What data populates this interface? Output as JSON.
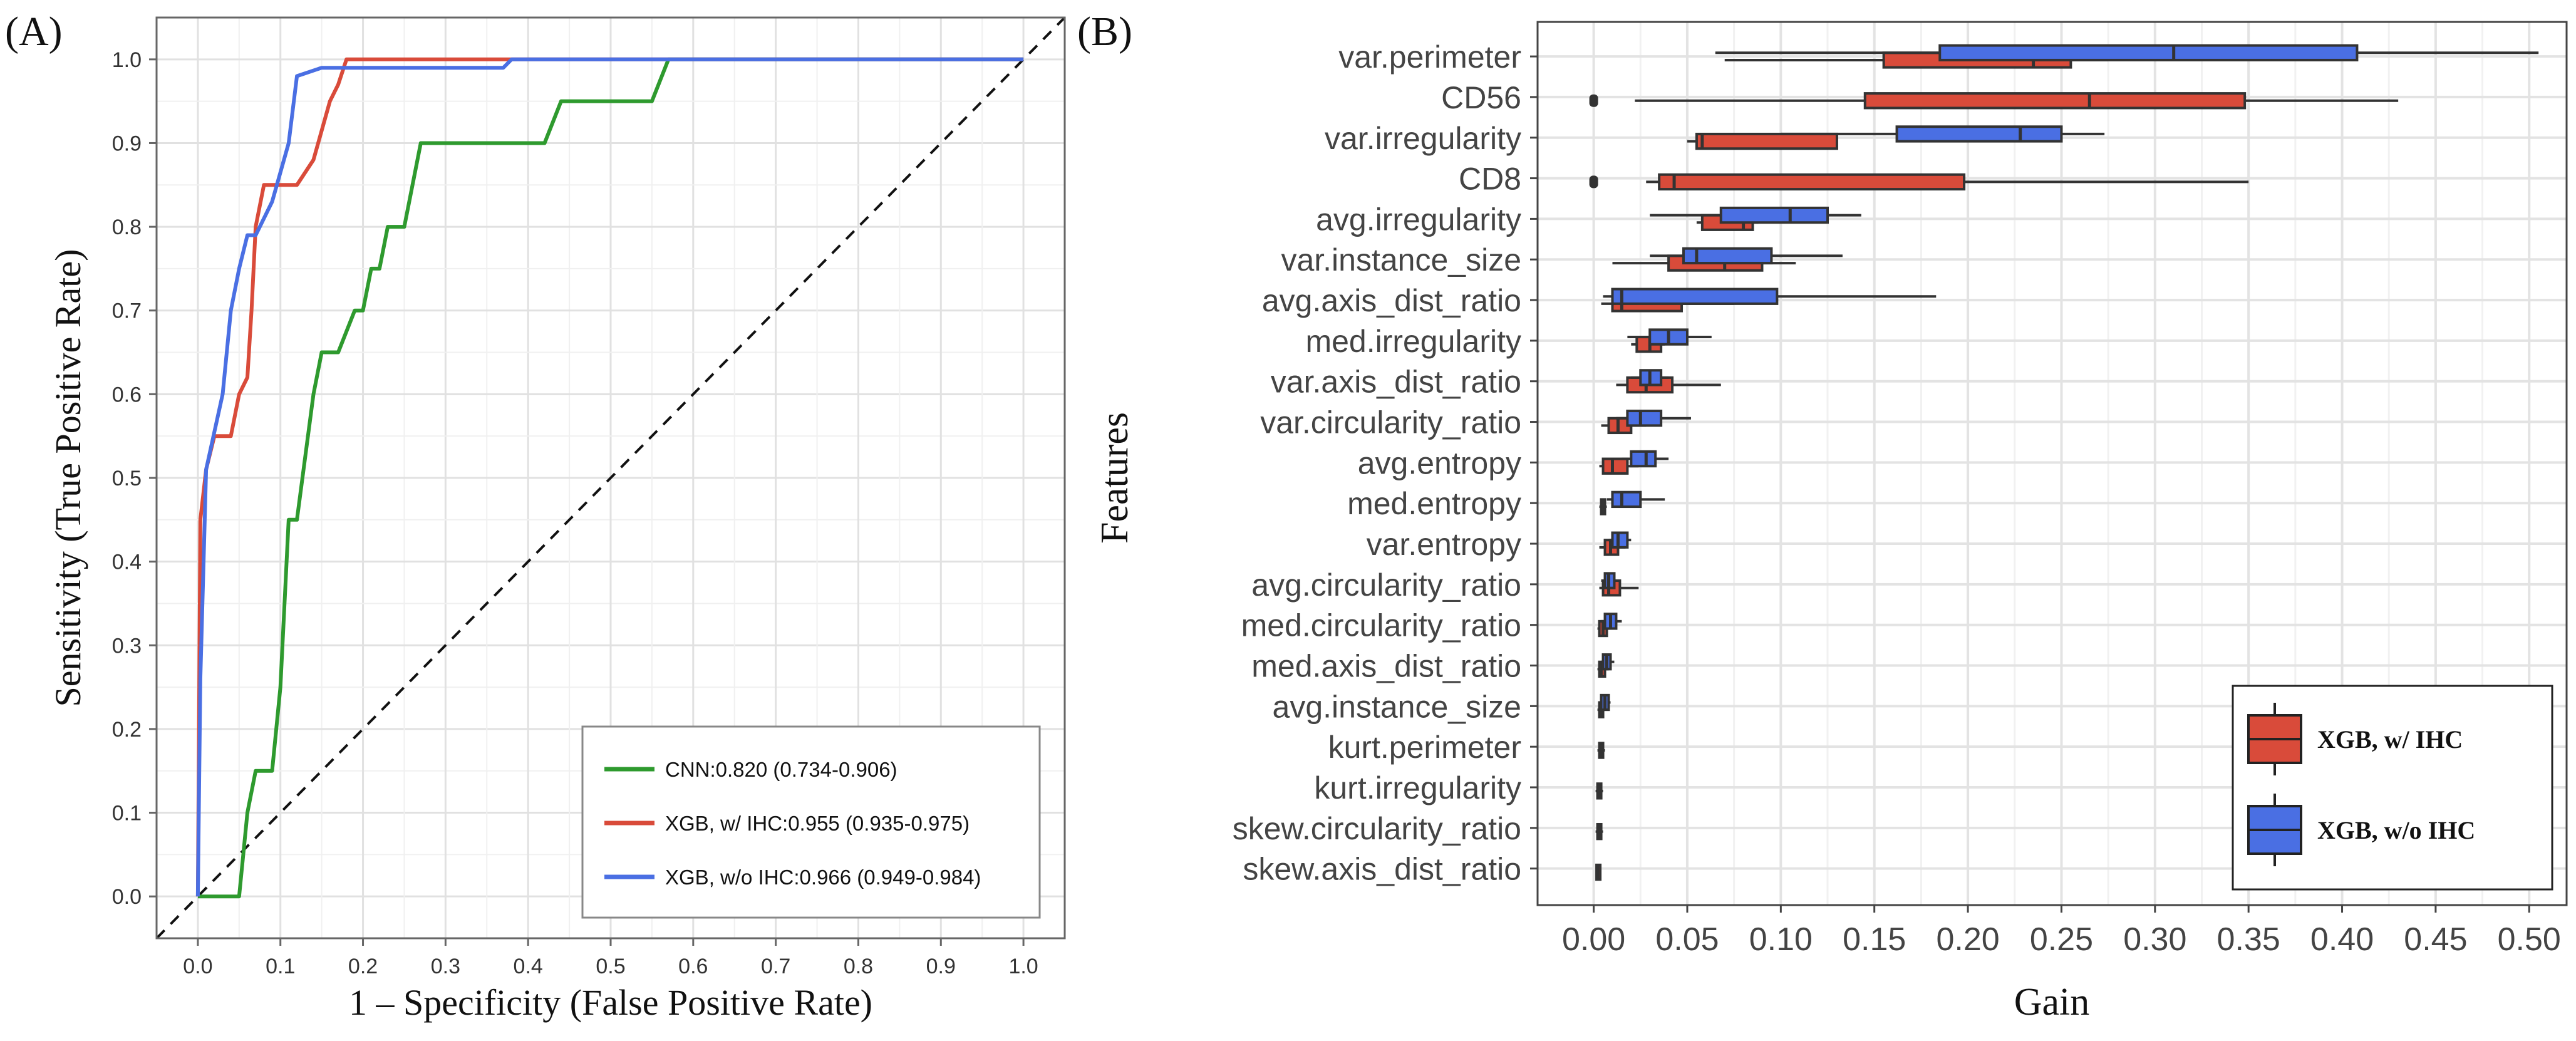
{
  "chart_data": [
    {
      "panel": "(A)",
      "type": "line",
      "xlabel": "1 – Specificity (False Positive Rate)",
      "ylabel": "Sensitivity (True Positive Rate)",
      "xlim": [
        0,
        1
      ],
      "ylim": [
        0,
        1
      ],
      "xticks": [
        "0.0",
        "0.1",
        "0.2",
        "0.3",
        "0.4",
        "0.5",
        "0.6",
        "0.7",
        "0.8",
        "0.9",
        "1.0"
      ],
      "yticks": [
        "0.0",
        "0.1",
        "0.2",
        "0.3",
        "0.4",
        "0.5",
        "0.6",
        "0.7",
        "0.8",
        "0.9",
        "1.0"
      ],
      "grid": true,
      "legend_position": "bottom-right",
      "reference_line": "diagonal-dashed",
      "series": [
        {
          "name": "CNN:0.820 (0.734-0.906)",
          "color": "#2e9a2e",
          "points": [
            [
              0,
              0
            ],
            [
              0.05,
              0
            ],
            [
              0.055,
              0.05
            ],
            [
              0.06,
              0.1
            ],
            [
              0.07,
              0.15
            ],
            [
              0.09,
              0.15
            ],
            [
              0.1,
              0.25
            ],
            [
              0.11,
              0.45
            ],
            [
              0.12,
              0.45
            ],
            [
              0.14,
              0.6
            ],
            [
              0.15,
              0.65
            ],
            [
              0.17,
              0.65
            ],
            [
              0.19,
              0.7
            ],
            [
              0.2,
              0.7
            ],
            [
              0.21,
              0.75
            ],
            [
              0.22,
              0.75
            ],
            [
              0.23,
              0.8
            ],
            [
              0.25,
              0.8
            ],
            [
              0.27,
              0.9
            ],
            [
              0.28,
              0.9
            ],
            [
              0.42,
              0.9
            ],
            [
              0.44,
              0.95
            ],
            [
              0.55,
              0.95
            ],
            [
              0.57,
              1.0
            ],
            [
              1.0,
              1.0
            ]
          ]
        },
        {
          "name": "XGB, w/ IHC:0.955 (0.935-0.975)",
          "color": "#d94b3a",
          "points": [
            [
              0,
              0
            ],
            [
              0.003,
              0.45
            ],
            [
              0.01,
              0.51
            ],
            [
              0.02,
              0.55
            ],
            [
              0.04,
              0.55
            ],
            [
              0.05,
              0.6
            ],
            [
              0.06,
              0.62
            ],
            [
              0.065,
              0.7
            ],
            [
              0.07,
              0.8
            ],
            [
              0.08,
              0.85
            ],
            [
              0.12,
              0.85
            ],
            [
              0.14,
              0.88
            ],
            [
              0.16,
              0.95
            ],
            [
              0.17,
              0.97
            ],
            [
              0.18,
              1.0
            ],
            [
              1.0,
              1.0
            ]
          ]
        },
        {
          "name": "XGB, w/o IHC:0.966 (0.949-0.984)",
          "color": "#4a6fe3",
          "points": [
            [
              0,
              0
            ],
            [
              0.003,
              0.26
            ],
            [
              0.01,
              0.51
            ],
            [
              0.03,
              0.6
            ],
            [
              0.04,
              0.7
            ],
            [
              0.05,
              0.75
            ],
            [
              0.06,
              0.79
            ],
            [
              0.07,
              0.79
            ],
            [
              0.08,
              0.81
            ],
            [
              0.09,
              0.83
            ],
            [
              0.11,
              0.9
            ],
            [
              0.12,
              0.98
            ],
            [
              0.15,
              0.99
            ],
            [
              0.37,
              0.99
            ],
            [
              0.38,
              1.0
            ],
            [
              1.0,
              1.0
            ]
          ]
        }
      ]
    },
    {
      "panel": "(B)",
      "type": "box",
      "orientation": "horizontal",
      "xlabel": "Gain",
      "ylabel": "Features",
      "xlim": [
        -0.03,
        0.52
      ],
      "xticks": [
        "0.00",
        "0.05",
        "0.10",
        "0.15",
        "0.20",
        "0.25",
        "0.30",
        "0.35",
        "0.40",
        "0.45",
        "0.50"
      ],
      "grid": true,
      "legend_position": "bottom-right",
      "categories": [
        "var.perimeter",
        "CD56",
        "var.irregularity",
        "CD8",
        "avg.irregularity",
        "var.instance_size",
        "avg.axis_dist_ratio",
        "med.irregularity",
        "var.axis_dist_ratio",
        "var.circularity_ratio",
        "avg.entropy",
        "med.entropy",
        "var.entropy",
        "avg.circularity_ratio",
        "med.circularity_ratio",
        "med.axis_dist_ratio",
        "avg.instance_size",
        "kurt.perimeter",
        "kurt.irregularity",
        "skew.circularity_ratio",
        "skew.axis_dist_ratio"
      ],
      "series": [
        {
          "name": "XGB, w/ IHC",
          "color": "#d94b3a",
          "boxes": [
            {
              "category": "var.perimeter",
              "min": 0.07,
              "q1": 0.155,
              "median": 0.235,
              "q3": 0.255,
              "max": 0.275,
              "outliers": []
            },
            {
              "category": "CD56",
              "min": 0.022,
              "q1": 0.145,
              "median": 0.265,
              "q3": 0.348,
              "max": 0.43,
              "outliers": [
                0.0
              ]
            },
            {
              "category": "var.irregularity",
              "min": 0.05,
              "q1": 0.055,
              "median": 0.058,
              "q3": 0.13,
              "max": 0.13,
              "outliers": []
            },
            {
              "category": "CD8",
              "min": 0.028,
              "q1": 0.035,
              "median": 0.043,
              "q3": 0.198,
              "max": 0.35,
              "outliers": [
                0.0
              ]
            },
            {
              "category": "avg.irregularity",
              "min": 0.055,
              "q1": 0.058,
              "median": 0.08,
              "q3": 0.085,
              "max": 0.088,
              "outliers": []
            },
            {
              "category": "var.instance_size",
              "min": 0.01,
              "q1": 0.04,
              "median": 0.07,
              "q3": 0.09,
              "max": 0.108,
              "outliers": []
            },
            {
              "category": "avg.axis_dist_ratio",
              "min": 0.004,
              "q1": 0.01,
              "median": 0.015,
              "q3": 0.047,
              "max": 0.075,
              "outliers": []
            },
            {
              "category": "med.irregularity",
              "min": 0.02,
              "q1": 0.023,
              "median": 0.03,
              "q3": 0.036,
              "max": 0.038,
              "outliers": []
            },
            {
              "category": "var.axis_dist_ratio",
              "min": 0.012,
              "q1": 0.018,
              "median": 0.028,
              "q3": 0.042,
              "max": 0.068,
              "outliers": []
            },
            {
              "category": "var.circularity_ratio",
              "min": 0.004,
              "q1": 0.008,
              "median": 0.013,
              "q3": 0.02,
              "max": 0.028,
              "outliers": []
            },
            {
              "category": "avg.entropy",
              "min": 0.003,
              "q1": 0.005,
              "median": 0.01,
              "q3": 0.018,
              "max": 0.024,
              "outliers": []
            },
            {
              "category": "med.entropy",
              "min": 0.003,
              "q1": 0.004,
              "median": 0.005,
              "q3": 0.006,
              "max": 0.007,
              "outliers": []
            },
            {
              "category": "var.entropy",
              "min": 0.003,
              "q1": 0.006,
              "median": 0.009,
              "q3": 0.013,
              "max": 0.017,
              "outliers": []
            },
            {
              "category": "avg.circularity_ratio",
              "min": 0.003,
              "q1": 0.005,
              "median": 0.008,
              "q3": 0.014,
              "max": 0.024,
              "outliers": []
            },
            {
              "category": "med.circularity_ratio",
              "min": 0.002,
              "q1": 0.003,
              "median": 0.005,
              "q3": 0.007,
              "max": 0.009,
              "outliers": []
            },
            {
              "category": "med.axis_dist_ratio",
              "min": 0.002,
              "q1": 0.003,
              "median": 0.004,
              "q3": 0.006,
              "max": 0.008,
              "outliers": []
            },
            {
              "category": "avg.instance_size",
              "min": 0.002,
              "q1": 0.003,
              "median": 0.004,
              "q3": 0.005,
              "max": 0.006,
              "outliers": []
            },
            {
              "category": "kurt.perimeter",
              "min": 0.002,
              "q1": 0.003,
              "median": 0.004,
              "q3": 0.005,
              "max": 0.006,
              "outliers": []
            },
            {
              "category": "kurt.irregularity",
              "min": 0.001,
              "q1": 0.002,
              "median": 0.003,
              "q3": 0.004,
              "max": 0.005,
              "outliers": []
            },
            {
              "category": "skew.circularity_ratio",
              "min": 0.001,
              "q1": 0.002,
              "median": 0.003,
              "q3": 0.004,
              "max": 0.005,
              "outliers": []
            },
            {
              "category": "skew.axis_dist_ratio",
              "min": 0.001,
              "q1": 0.0015,
              "median": 0.002,
              "q3": 0.0025,
              "max": 0.003,
              "outliers": []
            }
          ]
        },
        {
          "name": "XGB, w/o IHC",
          "color": "#4a6fe3",
          "boxes": [
            {
              "category": "var.perimeter",
              "min": 0.065,
              "q1": 0.185,
              "median": 0.31,
              "q3": 0.408,
              "max": 0.505,
              "outliers": []
            },
            {
              "category": "var.irregularity",
              "min": 0.1,
              "q1": 0.162,
              "median": 0.228,
              "q3": 0.25,
              "max": 0.273,
              "outliers": []
            },
            {
              "category": "avg.irregularity",
              "min": 0.03,
              "q1": 0.068,
              "median": 0.105,
              "q3": 0.125,
              "max": 0.143,
              "outliers": []
            },
            {
              "category": "var.instance_size",
              "min": 0.03,
              "q1": 0.048,
              "median": 0.055,
              "q3": 0.095,
              "max": 0.133,
              "outliers": []
            },
            {
              "category": "avg.axis_dist_ratio",
              "min": 0.005,
              "q1": 0.01,
              "median": 0.015,
              "q3": 0.098,
              "max": 0.183,
              "outliers": []
            },
            {
              "category": "med.irregularity",
              "min": 0.018,
              "q1": 0.03,
              "median": 0.04,
              "q3": 0.05,
              "max": 0.063,
              "outliers": []
            },
            {
              "category": "var.axis_dist_ratio",
              "min": 0.02,
              "q1": 0.025,
              "median": 0.03,
              "q3": 0.036,
              "max": 0.04,
              "outliers": []
            },
            {
              "category": "var.circularity_ratio",
              "min": 0.012,
              "q1": 0.018,
              "median": 0.025,
              "q3": 0.036,
              "max": 0.052,
              "outliers": []
            },
            {
              "category": "avg.entropy",
              "min": 0.015,
              "q1": 0.02,
              "median": 0.028,
              "q3": 0.033,
              "max": 0.04,
              "outliers": []
            },
            {
              "category": "med.entropy",
              "min": 0.007,
              "q1": 0.01,
              "median": 0.015,
              "q3": 0.025,
              "max": 0.038,
              "outliers": []
            },
            {
              "category": "var.entropy",
              "min": 0.008,
              "q1": 0.01,
              "median": 0.013,
              "q3": 0.018,
              "max": 0.02,
              "outliers": []
            },
            {
              "category": "avg.circularity_ratio",
              "min": 0.004,
              "q1": 0.006,
              "median": 0.008,
              "q3": 0.011,
              "max": 0.012,
              "outliers": []
            },
            {
              "category": "med.circularity_ratio",
              "min": 0.004,
              "q1": 0.006,
              "median": 0.009,
              "q3": 0.012,
              "max": 0.015,
              "outliers": []
            },
            {
              "category": "med.axis_dist_ratio",
              "min": 0.004,
              "q1": 0.005,
              "median": 0.007,
              "q3": 0.009,
              "max": 0.011,
              "outliers": []
            },
            {
              "category": "avg.instance_size",
              "min": 0.003,
              "q1": 0.004,
              "median": 0.006,
              "q3": 0.008,
              "max": 0.009,
              "outliers": []
            }
          ]
        }
      ]
    }
  ]
}
